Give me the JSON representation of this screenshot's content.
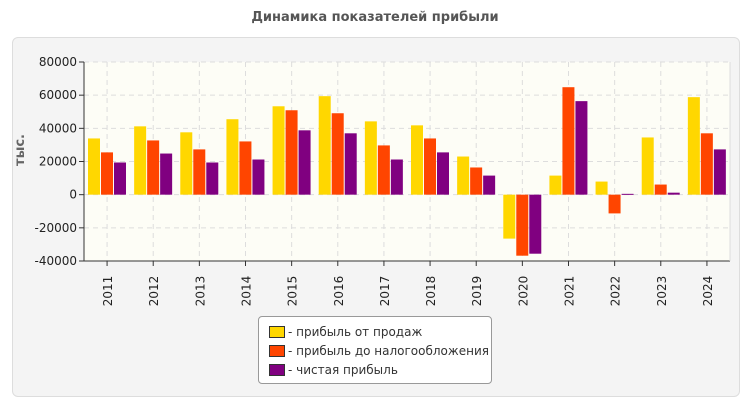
{
  "chart_data": {
    "type": "bar",
    "title": "Динамика показателей прибыли",
    "ylabel": "тыс.",
    "xlabel": "",
    "ylim": [
      -40000,
      80000
    ],
    "yticks": [
      -40000,
      -20000,
      0,
      20000,
      40000,
      60000,
      80000
    ],
    "grid": true,
    "legend_position": "bottom",
    "categories": [
      "2011",
      "2012",
      "2013",
      "2014",
      "2015",
      "2016",
      "2017",
      "2018",
      "2019",
      "2020",
      "2021",
      "2022",
      "2023",
      "2024"
    ],
    "series": [
      {
        "name": "- прибыль от продаж",
        "color": "#FFD700",
        "values": [
          33900,
          41200,
          37600,
          45500,
          53300,
          59400,
          44200,
          41800,
          23000,
          -26500,
          11500,
          7900,
          34500,
          58800
        ]
      },
      {
        "name": "- прибыль до налогообложения",
        "color": "#FF4500",
        "values": [
          25500,
          32700,
          27300,
          32100,
          50900,
          49100,
          29700,
          33900,
          16400,
          -36800,
          64800,
          -11300,
          6100,
          37000
        ]
      },
      {
        "name": "- чистая прибыль",
        "color": "#800080",
        "values": [
          19400,
          24800,
          19400,
          21200,
          38800,
          37000,
          21200,
          25500,
          11500,
          -35600,
          56400,
          500,
          1200,
          27300
        ]
      }
    ]
  }
}
